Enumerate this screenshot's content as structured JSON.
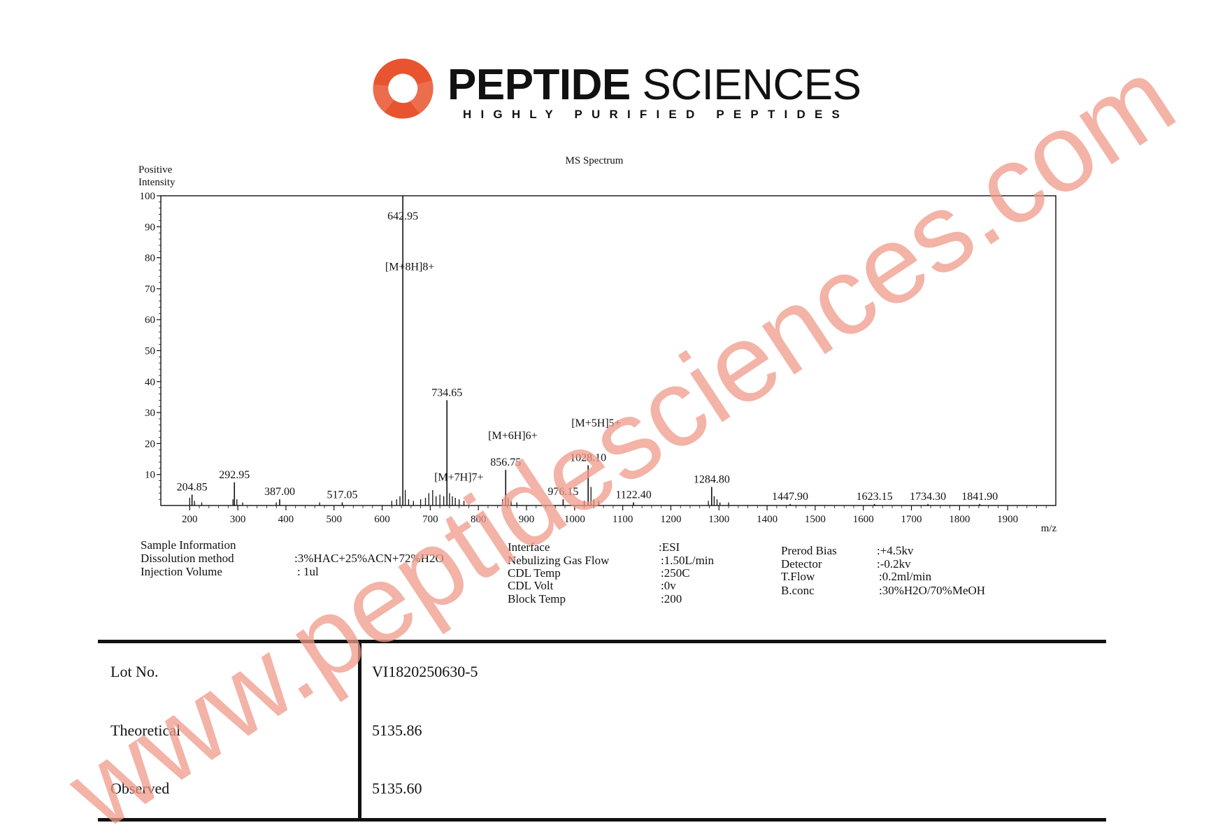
{
  "brand": {
    "name_bold": "PEPTIDE",
    "name_light": "SCIENCES",
    "tagline": "HIGHLY PURIFIED PEPTIDES",
    "accent_color": "#e8542f"
  },
  "chart_data": {
    "type": "line",
    "title": "MS Spectrum",
    "ylabel": "Positive\nIntensity",
    "xlabel": "m/z",
    "xlim": [
      140,
      2000
    ],
    "ylim": [
      0,
      100
    ],
    "x_ticks": [
      "200",
      "300",
      "400",
      "500",
      "600",
      "700",
      "800",
      "900",
      "1000",
      "1100",
      "1200",
      "1300",
      "1400",
      "1500",
      "1600",
      "1700",
      "1800",
      "1900"
    ],
    "y_ticks": [
      "10",
      "20",
      "30",
      "40",
      "50",
      "60",
      "70",
      "80",
      "90",
      "100"
    ],
    "peaks": [
      {
        "x": 204.85,
        "y": 3.5,
        "label": "204.85"
      },
      {
        "x": 292.95,
        "y": 7.5,
        "label": "292.95"
      },
      {
        "x": 387.0,
        "y": 2.0,
        "label": "387.00"
      },
      {
        "x": 517.05,
        "y": 1.0,
        "label": "517.05"
      },
      {
        "x": 642.95,
        "y": 100,
        "label": "642.95"
      },
      {
        "x": 734.65,
        "y": 34.0,
        "label": "734.65"
      },
      {
        "x": 856.75,
        "y": 11.5,
        "label": "856.75"
      },
      {
        "x": 976.15,
        "y": 2.0,
        "label": "976.15"
      },
      {
        "x": 1028.1,
        "y": 13.0,
        "label": "1028.10"
      },
      {
        "x": 1122.4,
        "y": 1.0,
        "label": "1122.40"
      },
      {
        "x": 1284.8,
        "y": 6.0,
        "label": "1284.80"
      },
      {
        "x": 1447.9,
        "y": 0.5,
        "label": "1447.90"
      },
      {
        "x": 1623.15,
        "y": 0.5,
        "label": "1623.15"
      },
      {
        "x": 1734.3,
        "y": 0.5,
        "label": "1734.30"
      },
      {
        "x": 1841.9,
        "y": 0.5,
        "label": "1841.90"
      }
    ],
    "minor_peaks": [
      {
        "x": 200,
        "y": 2.5
      },
      {
        "x": 210,
        "y": 1.5
      },
      {
        "x": 225,
        "y": 1
      },
      {
        "x": 290,
        "y": 2
      },
      {
        "x": 298,
        "y": 2
      },
      {
        "x": 310,
        "y": 1
      },
      {
        "x": 380,
        "y": 1
      },
      {
        "x": 470,
        "y": 1
      },
      {
        "x": 620,
        "y": 1.5
      },
      {
        "x": 630,
        "y": 2
      },
      {
        "x": 637,
        "y": 3
      },
      {
        "x": 648,
        "y": 5
      },
      {
        "x": 655,
        "y": 2
      },
      {
        "x": 665,
        "y": 1.5
      },
      {
        "x": 680,
        "y": 2
      },
      {
        "x": 690,
        "y": 2.5
      },
      {
        "x": 697,
        "y": 4
      },
      {
        "x": 705,
        "y": 5
      },
      {
        "x": 712,
        "y": 3
      },
      {
        "x": 720,
        "y": 3.5
      },
      {
        "x": 728,
        "y": 3
      },
      {
        "x": 740,
        "y": 4
      },
      {
        "x": 746,
        "y": 3
      },
      {
        "x": 752,
        "y": 2.5
      },
      {
        "x": 760,
        "y": 2
      },
      {
        "x": 770,
        "y": 1.5
      },
      {
        "x": 850,
        "y": 2
      },
      {
        "x": 862,
        "y": 2.5
      },
      {
        "x": 868,
        "y": 1.5
      },
      {
        "x": 880,
        "y": 1
      },
      {
        "x": 1020,
        "y": 1.5
      },
      {
        "x": 1034,
        "y": 6
      },
      {
        "x": 1040,
        "y": 2
      },
      {
        "x": 1050,
        "y": 1.5
      },
      {
        "x": 1278,
        "y": 1.5
      },
      {
        "x": 1290,
        "y": 3
      },
      {
        "x": 1296,
        "y": 2
      },
      {
        "x": 1302,
        "y": 1
      },
      {
        "x": 1320,
        "y": 1
      }
    ],
    "annotations": [
      {
        "text": "[M+8H]8+",
        "x": 642.95,
        "y": 76
      },
      {
        "text": "[M+7H]7+",
        "x": 745,
        "y": 8
      },
      {
        "text": "[M+6H]6+",
        "x": 857,
        "y": 21.5
      },
      {
        "text": "[M+5H]5+",
        "x": 1030,
        "y": 25.5
      }
    ]
  },
  "sample_info": {
    "col1": {
      "heading": "Sample Information",
      "rows": [
        {
          "label": "Dissolution method",
          "value": ":3%HAC+25%ACN+72%H2O"
        },
        {
          "label": "Injection Volume",
          "value": ": 1ul"
        }
      ]
    },
    "col2": {
      "rows": [
        {
          "label": "Interface",
          "value": ":ESI"
        },
        {
          "label": "Nebulizing Gas Flow",
          "value": ":1.50L/min"
        },
        {
          "label": "CDL Temp",
          "value": ":250C"
        },
        {
          "label": "CDL Volt",
          "value": ":0v"
        },
        {
          "label": "Block Temp",
          "value": ":200"
        }
      ]
    },
    "col3": {
      "rows": [
        {
          "label": "Prerod Bias",
          "value": ":+4.5kv"
        },
        {
          "label": "Detector",
          "value": ":-0.2kv"
        },
        {
          "label": "T.Flow",
          "value": ":0.2ml/min"
        },
        {
          "label": "B.conc",
          "value": ":30%H2O/70%MeOH"
        }
      ]
    }
  },
  "results": {
    "rows": [
      {
        "label": "Lot No.",
        "value": "VI1820250630-5"
      },
      {
        "label": "Theoretical",
        "value": "5135.86"
      },
      {
        "label": "Observed",
        "value": "5135.60"
      }
    ]
  },
  "watermark": {
    "text": "www.peptidesciences.com",
    "color": "#ef9a8a"
  }
}
